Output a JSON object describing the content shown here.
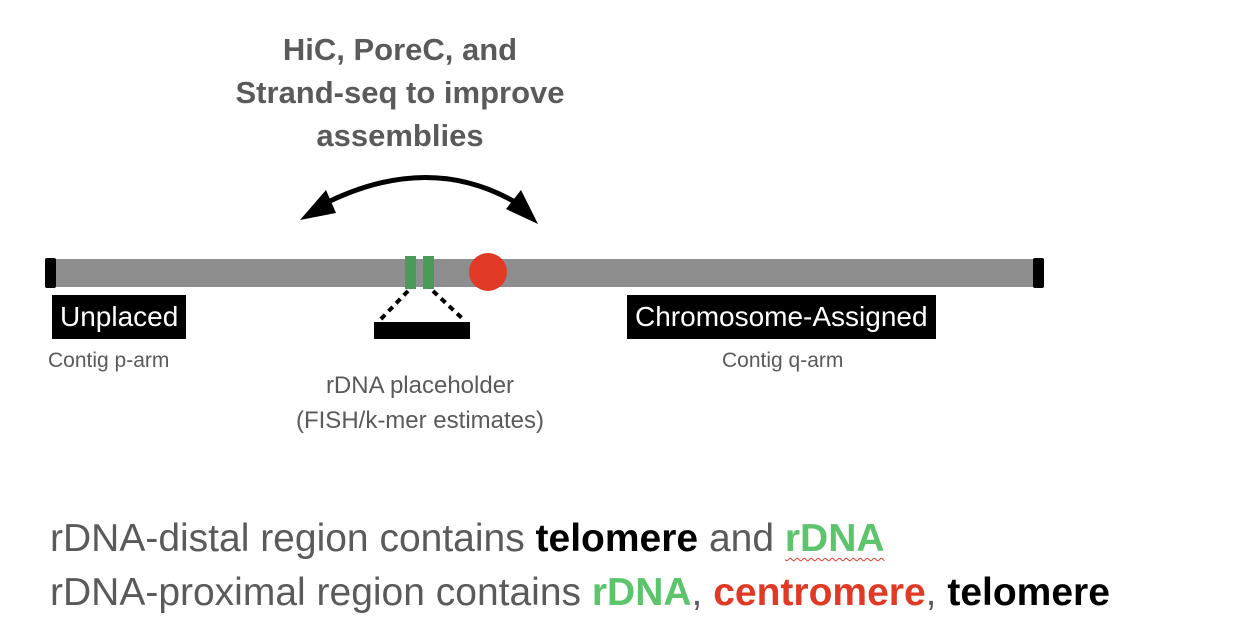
{
  "heading": {
    "lines": [
      "HiC, PoreC, and",
      "Strand-seq to improve",
      "assemblies"
    ]
  },
  "labels": {
    "unplaced": "Unplaced",
    "chromosome_assigned": "Chromosome-Assigned",
    "contig_p_arm": "Contig p-arm",
    "contig_q_arm": "Contig q-arm",
    "rdna_placeholder": [
      "rDNA placeholder",
      "(FISH/k-mer estimates)"
    ]
  },
  "summary": {
    "line1": {
      "prefix": "rDNA-distal region contains ",
      "telomere": "telomere",
      "and": " and ",
      "rdna": "rDNA"
    },
    "line2": {
      "prefix": "rDNA-proximal region contains ",
      "rdna": "rDNA",
      "comma1": ", ",
      "centromere": "centromere",
      "comma2": ", ",
      "telomere": "telomere"
    }
  },
  "colors": {
    "chromosome_bar": "#8e8e8e",
    "rdna_marker": "#4a9b58",
    "centromere": "#e03a26",
    "telomere": "#000000",
    "text_gray": "#5a5a5a",
    "keyword_green": "#5cc46a",
    "keyword_red": "#e03a26"
  },
  "icons": [
    "double-headed-curved-arrow",
    "telomere-cap",
    "centromere-circle",
    "rdna-bands",
    "placeholder-bracket"
  ]
}
